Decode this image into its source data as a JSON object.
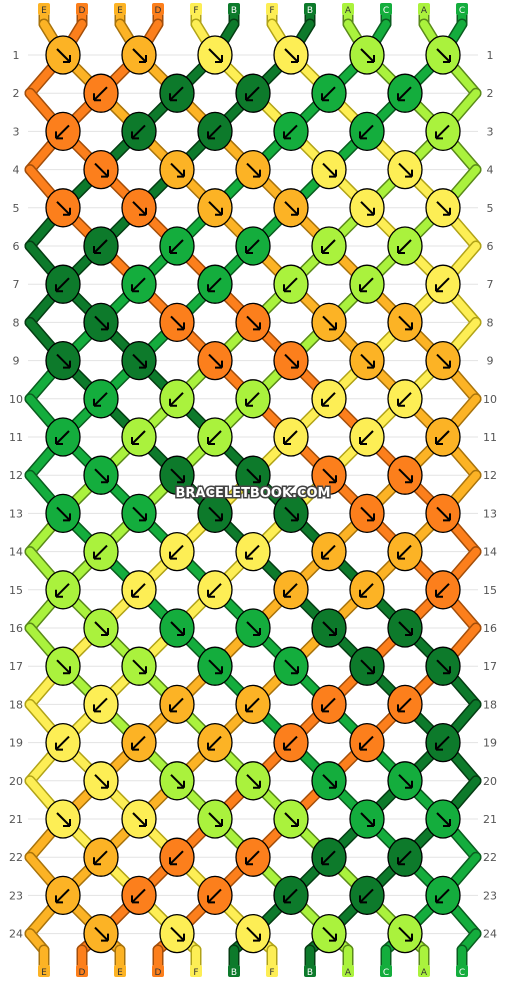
{
  "colors": {
    "A": "#aaf23d",
    "B": "#0d7a2b",
    "C": "#14ad3d",
    "D": "#fc7f1c",
    "E": "#fcb325",
    "F": "#fdee55"
  },
  "watermark": "BRACELETBOOK.COM",
  "strings_top": [
    "E",
    "D",
    "E",
    "D",
    "F",
    "B",
    "F",
    "B",
    "A",
    "C",
    "A",
    "C"
  ],
  "strings_bottom": [
    "E",
    "D",
    "E",
    "D",
    "F",
    "B",
    "F",
    "B",
    "A",
    "C",
    "A",
    "C"
  ],
  "row_numbers": [
    "1",
    "2",
    "3",
    "4",
    "5",
    "6",
    "7",
    "8",
    "9",
    "10",
    "11",
    "12",
    "13",
    "14",
    "15",
    "16",
    "17",
    "18",
    "19",
    "20",
    "21",
    "22",
    "23",
    "24"
  ],
  "knot_rows": [
    [
      [
        "E",
        "se"
      ],
      [
        "E",
        "se"
      ],
      [
        "F",
        "se"
      ],
      [
        "F",
        "se"
      ],
      [
        "A",
        "se"
      ],
      [
        "A",
        "se"
      ]
    ],
    [
      [
        "D",
        "sw"
      ],
      [
        "B",
        "sw"
      ],
      [
        "B",
        "sw"
      ],
      [
        "C",
        "sw"
      ],
      [
        "C",
        "sw"
      ]
    ],
    [
      [
        "D",
        "sw"
      ],
      [
        "B",
        "sw"
      ],
      [
        "B",
        "sw"
      ],
      [
        "C",
        "sw"
      ],
      [
        "C",
        "sw"
      ],
      [
        "A",
        "sw"
      ]
    ],
    [
      [
        "D",
        "se"
      ],
      [
        "E",
        "se"
      ],
      [
        "E",
        "se"
      ],
      [
        "F",
        "se"
      ],
      [
        "F",
        "se"
      ]
    ],
    [
      [
        "D",
        "se"
      ],
      [
        "D",
        "se"
      ],
      [
        "E",
        "se"
      ],
      [
        "E",
        "se"
      ],
      [
        "F",
        "se"
      ],
      [
        "F",
        "se"
      ]
    ],
    [
      [
        "B",
        "sw"
      ],
      [
        "C",
        "sw"
      ],
      [
        "C",
        "sw"
      ],
      [
        "A",
        "sw"
      ],
      [
        "A",
        "sw"
      ]
    ],
    [
      [
        "B",
        "sw"
      ],
      [
        "C",
        "sw"
      ],
      [
        "C",
        "sw"
      ],
      [
        "A",
        "sw"
      ],
      [
        "A",
        "sw"
      ],
      [
        "F",
        "sw"
      ]
    ],
    [
      [
        "B",
        "se"
      ],
      [
        "D",
        "se"
      ],
      [
        "D",
        "se"
      ],
      [
        "E",
        "se"
      ],
      [
        "E",
        "se"
      ]
    ],
    [
      [
        "B",
        "se"
      ],
      [
        "B",
        "se"
      ],
      [
        "D",
        "se"
      ],
      [
        "D",
        "se"
      ],
      [
        "E",
        "se"
      ],
      [
        "E",
        "se"
      ]
    ],
    [
      [
        "C",
        "sw"
      ],
      [
        "A",
        "sw"
      ],
      [
        "A",
        "sw"
      ],
      [
        "F",
        "sw"
      ],
      [
        "F",
        "sw"
      ]
    ],
    [
      [
        "C",
        "sw"
      ],
      [
        "A",
        "sw"
      ],
      [
        "A",
        "sw"
      ],
      [
        "F",
        "sw"
      ],
      [
        "F",
        "sw"
      ],
      [
        "E",
        "sw"
      ]
    ],
    [
      [
        "C",
        "se"
      ],
      [
        "B",
        "se"
      ],
      [
        "B",
        "se"
      ],
      [
        "D",
        "se"
      ],
      [
        "D",
        "se"
      ]
    ],
    [
      [
        "C",
        "se"
      ],
      [
        "C",
        "se"
      ],
      [
        "B",
        "se"
      ],
      [
        "B",
        "se"
      ],
      [
        "D",
        "se"
      ],
      [
        "D",
        "se"
      ]
    ],
    [
      [
        "A",
        "sw"
      ],
      [
        "F",
        "sw"
      ],
      [
        "F",
        "sw"
      ],
      [
        "E",
        "sw"
      ],
      [
        "E",
        "sw"
      ]
    ],
    [
      [
        "A",
        "sw"
      ],
      [
        "F",
        "sw"
      ],
      [
        "F",
        "sw"
      ],
      [
        "E",
        "sw"
      ],
      [
        "E",
        "sw"
      ],
      [
        "D",
        "sw"
      ]
    ],
    [
      [
        "A",
        "se"
      ],
      [
        "C",
        "se"
      ],
      [
        "C",
        "se"
      ],
      [
        "B",
        "se"
      ],
      [
        "B",
        "se"
      ]
    ],
    [
      [
        "A",
        "se"
      ],
      [
        "A",
        "se"
      ],
      [
        "C",
        "se"
      ],
      [
        "C",
        "se"
      ],
      [
        "B",
        "se"
      ],
      [
        "B",
        "se"
      ]
    ],
    [
      [
        "F",
        "sw"
      ],
      [
        "E",
        "sw"
      ],
      [
        "E",
        "sw"
      ],
      [
        "D",
        "sw"
      ],
      [
        "D",
        "sw"
      ]
    ],
    [
      [
        "F",
        "sw"
      ],
      [
        "E",
        "sw"
      ],
      [
        "E",
        "sw"
      ],
      [
        "D",
        "sw"
      ],
      [
        "D",
        "sw"
      ],
      [
        "B",
        "sw"
      ]
    ],
    [
      [
        "F",
        "se"
      ],
      [
        "A",
        "se"
      ],
      [
        "A",
        "se"
      ],
      [
        "C",
        "se"
      ],
      [
        "C",
        "se"
      ]
    ],
    [
      [
        "F",
        "se"
      ],
      [
        "F",
        "se"
      ],
      [
        "A",
        "se"
      ],
      [
        "A",
        "se"
      ],
      [
        "C",
        "se"
      ],
      [
        "C",
        "se"
      ]
    ],
    [
      [
        "E",
        "sw"
      ],
      [
        "D",
        "sw"
      ],
      [
        "D",
        "sw"
      ],
      [
        "B",
        "sw"
      ],
      [
        "B",
        "sw"
      ]
    ],
    [
      [
        "E",
        "sw"
      ],
      [
        "D",
        "sw"
      ],
      [
        "D",
        "sw"
      ],
      [
        "B",
        "sw"
      ],
      [
        "B",
        "sw"
      ],
      [
        "C",
        "sw"
      ]
    ],
    [
      [
        "E",
        "se"
      ],
      [
        "F",
        "se"
      ],
      [
        "F",
        "se"
      ],
      [
        "A",
        "se"
      ],
      [
        "A",
        "se"
      ]
    ]
  ]
}
